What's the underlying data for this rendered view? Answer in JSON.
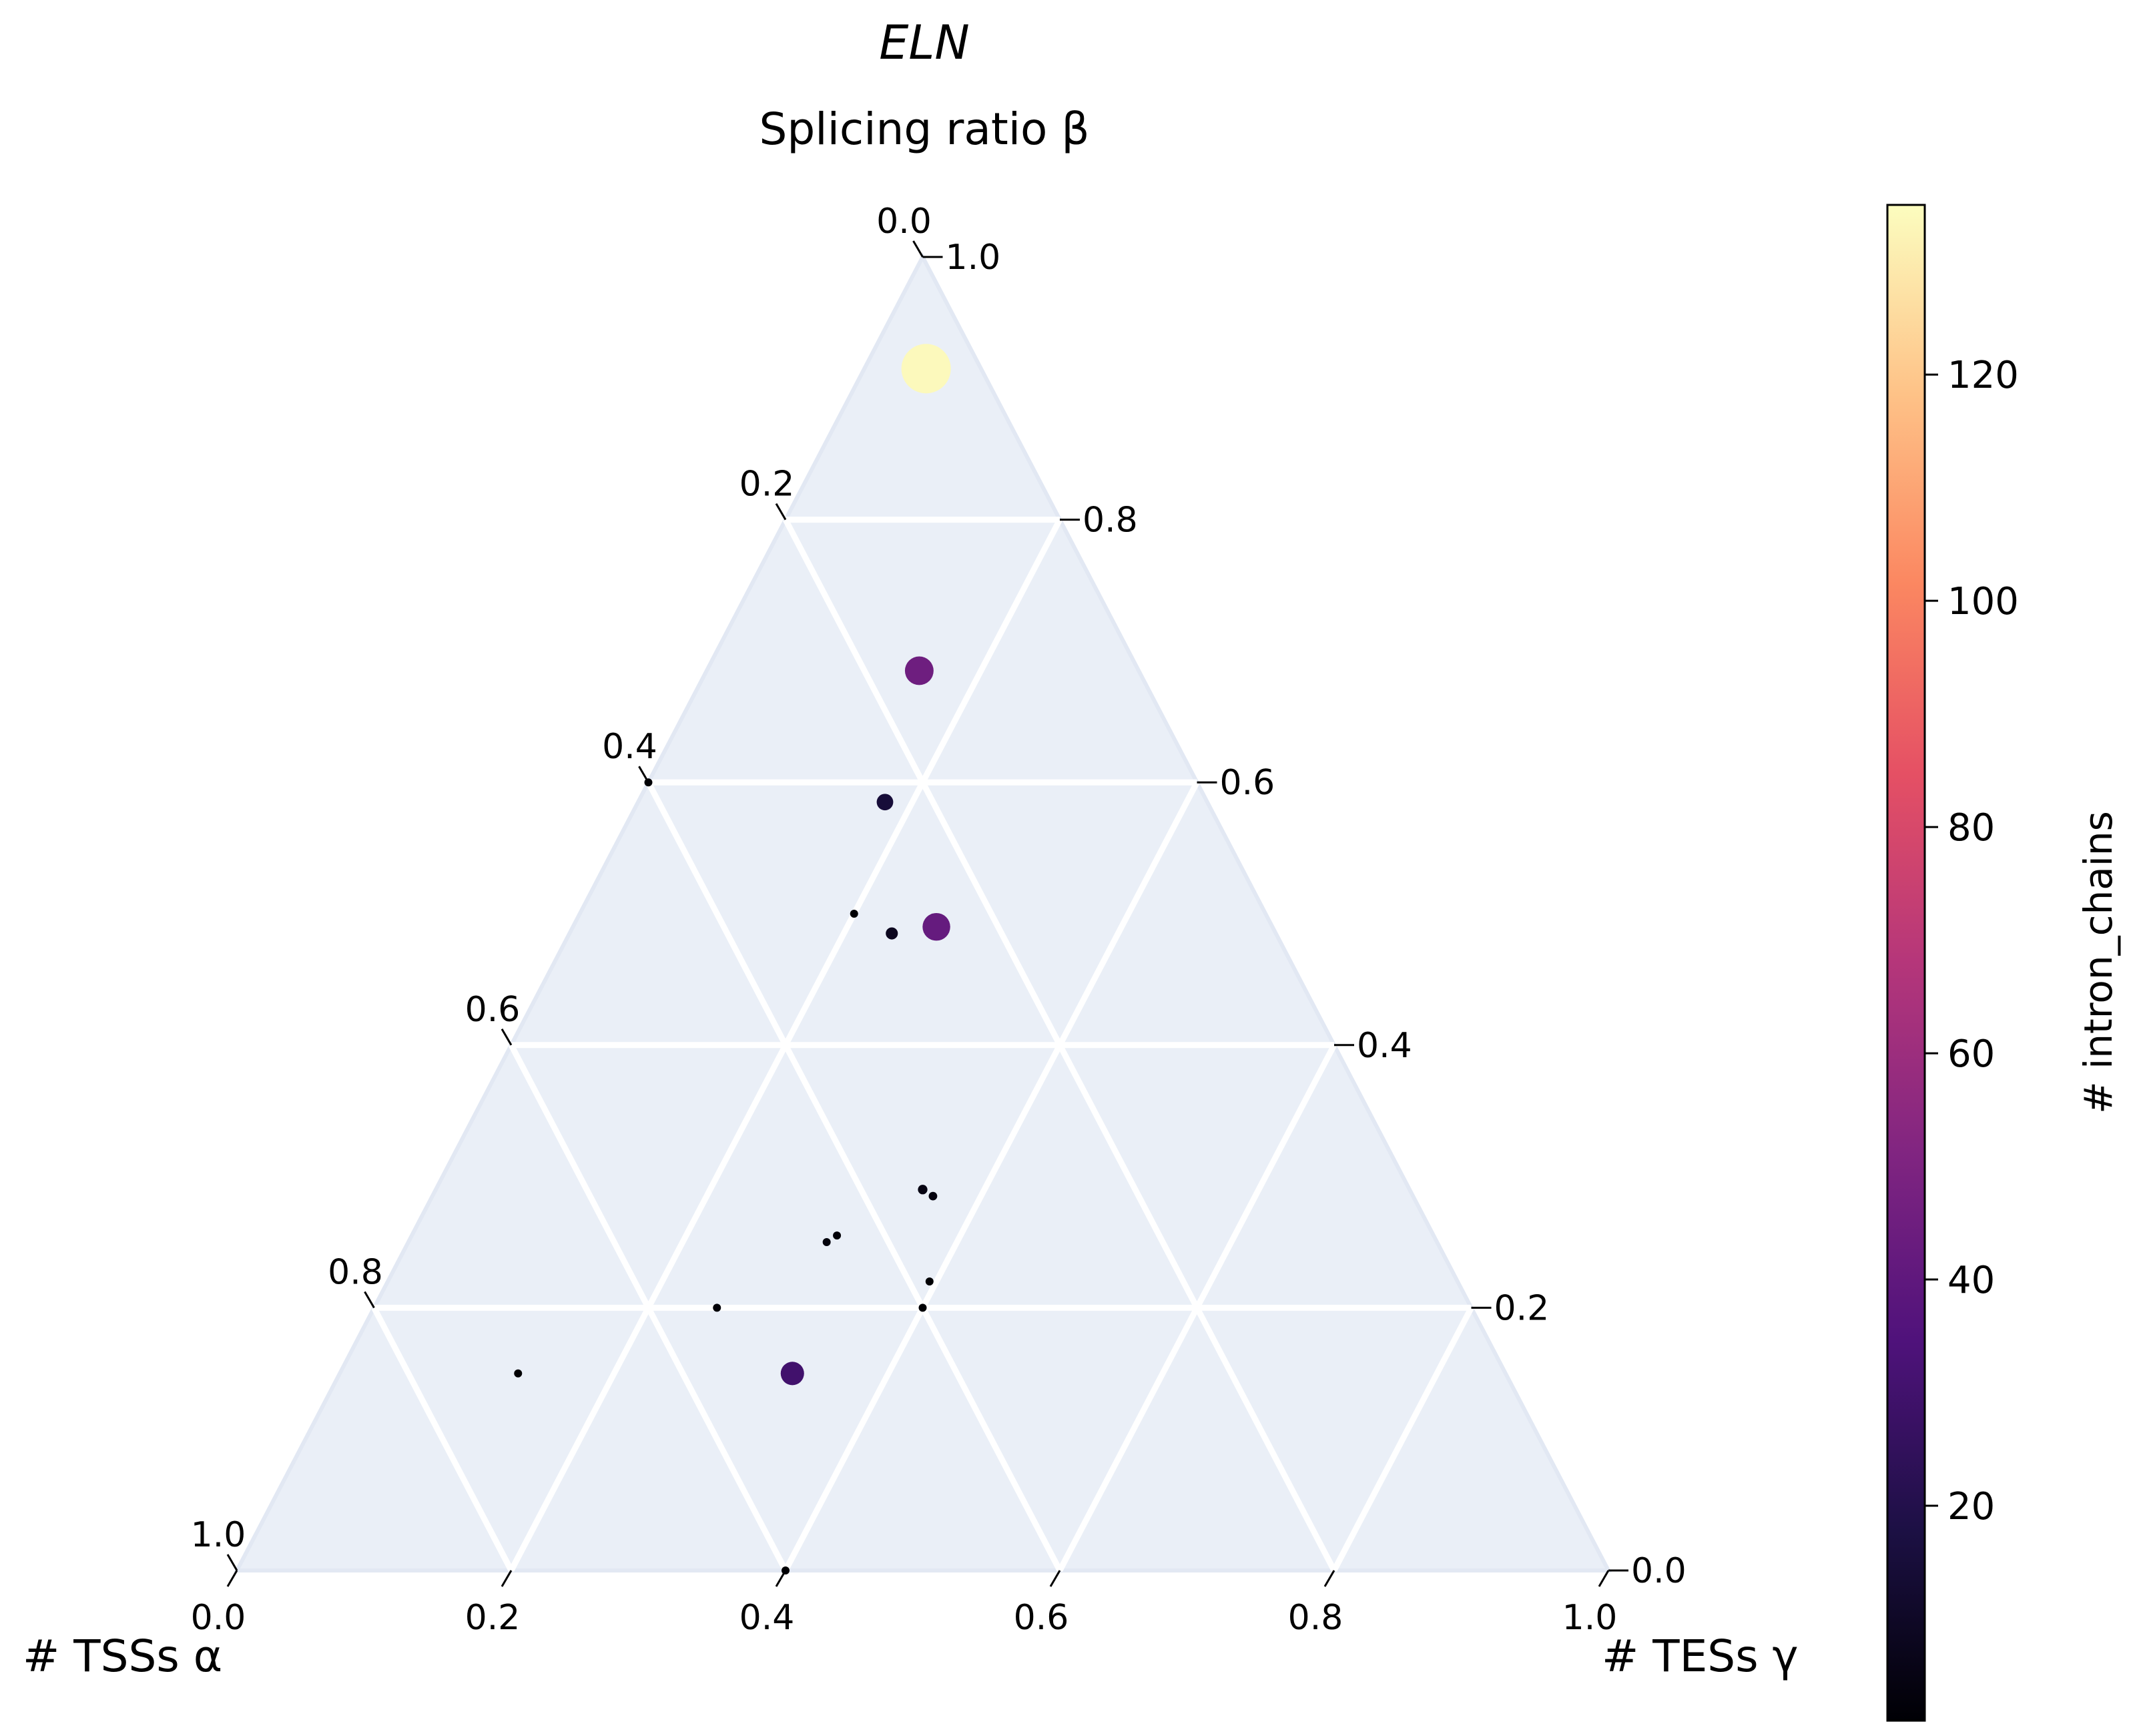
{
  "chart_data": {
    "type": "ternary-scatter",
    "title": "ELN",
    "top_axis_label": "Splicing ratio β",
    "left_axis_label": "# TSSs α",
    "right_axis_label": "# TESs γ",
    "colorbar_label": "# intron_chains",
    "colormap": "magma",
    "color_range": [
      1,
      135
    ],
    "colorbar_ticks": [
      "20",
      "40",
      "60",
      "80",
      "100",
      "120"
    ],
    "bottom_ticks": [
      "0.0",
      "0.2",
      "0.4",
      "0.6",
      "0.8",
      "1.0"
    ],
    "left_ticks": [
      "0.0",
      "0.2",
      "0.4",
      "0.6",
      "0.8",
      "1.0"
    ],
    "right_ticks": [
      "0.0",
      "0.2",
      "0.4",
      "0.6",
      "0.8",
      "1.0"
    ],
    "grid": true,
    "background": "#eaeff7",
    "points": [
      {
        "alpha": 0.04,
        "beta": 0.915,
        "gamma": 0.045,
        "count": 134
      },
      {
        "alpha": 0.16,
        "beta": 0.685,
        "gamma": 0.155,
        "count": 45
      },
      {
        "alpha": 0.235,
        "beta": 0.585,
        "gamma": 0.18,
        "count": 15
      },
      {
        "alpha": 0.3,
        "beta": 0.5,
        "gamma": 0.2,
        "count": 1
      },
      {
        "alpha": 0.245,
        "beta": 0.49,
        "gamma": 0.265,
        "count": 42
      },
      {
        "alpha": 0.28,
        "beta": 0.485,
        "gamma": 0.235,
        "count": 8
      },
      {
        "alpha": 0.355,
        "beta": 0.29,
        "gamma": 0.355,
        "count": 5
      },
      {
        "alpha": 0.35,
        "beta": 0.285,
        "gamma": 0.365,
        "count": 4
      },
      {
        "alpha": 0.385,
        "beta": 0.22,
        "gamma": 0.395,
        "count": 1
      },
      {
        "alpha": 0.4,
        "beta": 0.2,
        "gamma": 0.4,
        "count": 1
      },
      {
        "alpha": 0.4,
        "beta": 0.6,
        "gamma": 0.0,
        "count": 1
      },
      {
        "alpha": 0.435,
        "beta": 0.255,
        "gamma": 0.31,
        "count": 2
      },
      {
        "alpha": 0.445,
        "beta": 0.25,
        "gamma": 0.305,
        "count": 3
      },
      {
        "alpha": 0.55,
        "beta": 0.2,
        "gamma": 0.25,
        "count": 2
      },
      {
        "alpha": 0.72,
        "beta": 0.15,
        "gamma": 0.13,
        "count": 1
      },
      {
        "alpha": 0.6,
        "beta": 0.0,
        "gamma": 0.4,
        "count": 1
      },
      {
        "alpha": 0.52,
        "beta": 0.15,
        "gamma": 0.33,
        "count": 30
      }
    ]
  }
}
